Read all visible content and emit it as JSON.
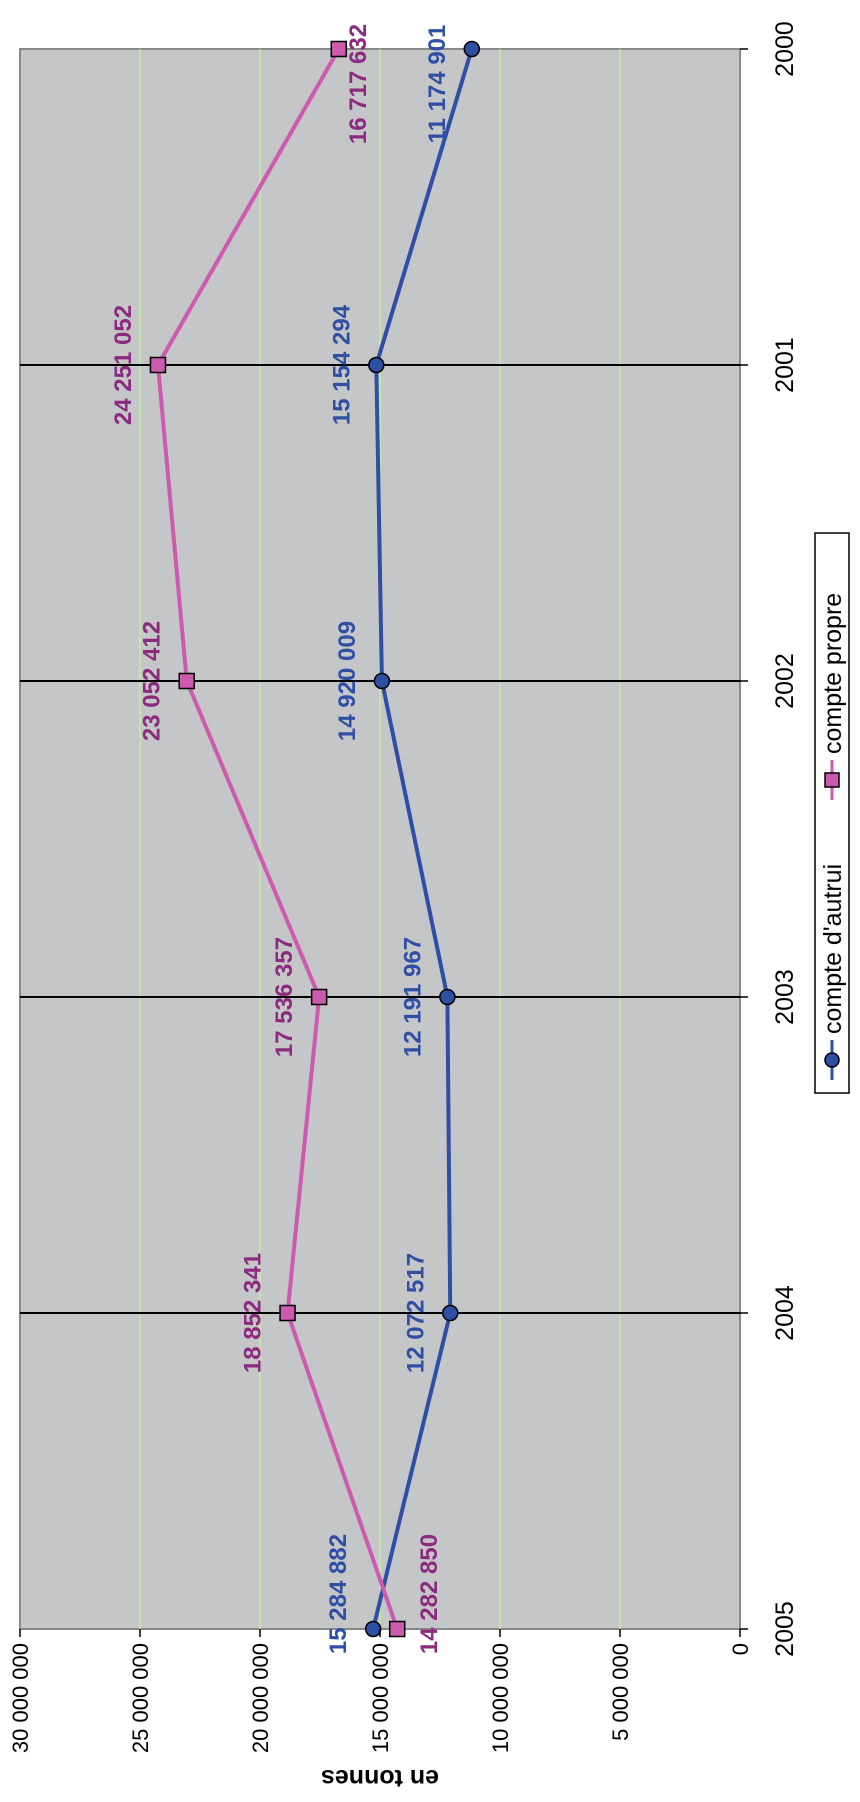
{
  "chart_data": {
    "type": "line",
    "categories": [
      "2000",
      "2001",
      "2002",
      "2003",
      "2004",
      "2005"
    ],
    "ylabel": "en tonnes",
    "ylim": [
      0,
      30000000
    ],
    "yticks": [
      "0",
      "5 000 000",
      "10 000 000",
      "15 000 000",
      "20 000 000",
      "25 000 000",
      "30 000 000"
    ],
    "ytick_values": [
      0,
      5000000,
      10000000,
      15000000,
      20000000,
      25000000,
      30000000
    ],
    "grid": true,
    "orientation": "rotated-90-clockwise",
    "plot_background": "#c5c6c8",
    "gridline_color": "#c8e8a8",
    "legend_position": "bottom",
    "series": [
      {
        "name": "compte d'autrui",
        "color": "#2e4fa3",
        "marker": "circle",
        "values": [
          11174901,
          15154294,
          14920009,
          12191967,
          12072517,
          15284882
        ],
        "labels": [
          "11 174 901",
          "15 154 294",
          "14 920 009",
          "12 191 967",
          "12 072 517",
          "15 284 882"
        ]
      },
      {
        "name": "compte propre",
        "color": "#cc5aae",
        "label_color": "#8b2a7f",
        "marker": "square",
        "values": [
          16717632,
          24251052,
          23052412,
          17536357,
          18852341,
          14282850
        ],
        "labels": [
          "16 717 632",
          "24 251 052",
          "23 052 412",
          "17 536 357",
          "18 852 341",
          "14 282 850"
        ]
      }
    ]
  }
}
